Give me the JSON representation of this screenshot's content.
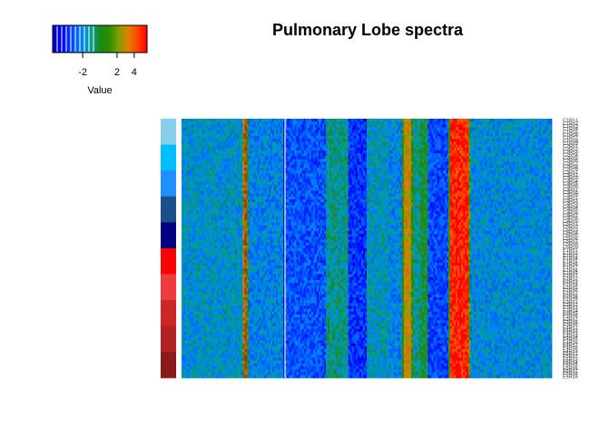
{
  "chart_data": {
    "type": "heatmap",
    "title": "Pulmonary Lobe spectra",
    "color_key": {
      "label": "Value",
      "ticks": [
        -2,
        2,
        4
      ],
      "range": [
        -5.5,
        5.5
      ],
      "colors": [
        "#0000b8",
        "#0000ff",
        "#0044ff",
        "#007fff",
        "#00a0a0",
        "#1a8a1a",
        "#2e8b00",
        "#7fa000",
        "#e08000",
        "#ff4500",
        "#ff0000"
      ]
    },
    "rows": [
      "C1Rs1",
      "C1Rs2",
      "C1Rs3",
      "C1Rs4",
      "C1Rs5",
      "C1Rs6",
      "C1Rs7",
      "C1Rs8",
      "C1Rs9",
      "C2Rs1",
      "C2Rs2",
      "C2Rs3",
      "C2Rs4",
      "C2Rs5",
      "C2Rs6",
      "C2Rs7",
      "C2Rs8",
      "C2Rs9",
      "C3Rs1",
      "C3Rs2",
      "C3Rs3",
      "C3Rs4",
      "C3Rs5",
      "C3Rs6",
      "C3Rs7",
      "C3Rs8",
      "C3Rs9",
      "C4Rs1",
      "C4Rs2",
      "C4Rs3",
      "C4Rs4",
      "C4Rs5",
      "C4Rs6",
      "C4Rs7",
      "C4Rs8",
      "C4Rs9",
      "C5Rs1",
      "C5Rs2",
      "C5Rs3",
      "C5Rs4",
      "C5Rs5",
      "C5Rs6",
      "C5Rs7",
      "C5Rs8",
      "C5Rs9",
      "E1Rs1",
      "E1Rs2",
      "E1Rs3",
      "E1Rs4",
      "E1Rs5",
      "E1Rs6",
      "E1Rs7",
      "E1Rs8",
      "E1Rs9",
      "E2Rs1",
      "E2Rs2",
      "E2Rs3",
      "E2Rs4",
      "E2Rs5",
      "E2Rs6",
      "E2Rs7",
      "E2Rs8",
      "E2Rs9",
      "E3Rs1",
      "E3Rs2",
      "E3Rs3",
      "E3Rs4",
      "E3Rs5",
      "E3Rs6",
      "E3Rs7",
      "E3Rs8",
      "E3Rs9",
      "E4Rs1",
      "E4Rs2",
      "E4Rs3",
      "E4Rs4",
      "E4Rs5",
      "E4Rs6",
      "E4Rs7",
      "E4Rs8",
      "E4Rs9",
      "E5Rs1",
      "E5Rs2",
      "E5Rs3",
      "E5Rs4",
      "E5Rs5",
      "E5Rs6",
      "E5Rs7",
      "E5Rs8",
      "E5Rs9"
    ],
    "row_groups": [
      {
        "color": "#87ceeb"
      },
      {
        "color": "#00bfff"
      },
      {
        "color": "#1e90ff"
      },
      {
        "color": "#1c4f8a"
      },
      {
        "color": "#000080"
      },
      {
        "color": "#ff0000"
      },
      {
        "color": "#ee3b3b"
      },
      {
        "color": "#cd2626"
      },
      {
        "color": "#b22222"
      },
      {
        "color": "#8b1a1a"
      }
    ],
    "n_columns": 200,
    "column_profile": [
      {
        "from": 0,
        "to": 33,
        "level": -1.6
      },
      {
        "from": 33,
        "to": 34,
        "level": 2.0
      },
      {
        "from": 34,
        "to": 35,
        "level": 5.0
      },
      {
        "from": 35,
        "to": 36,
        "level": 1.0
      },
      {
        "from": 36,
        "to": 55,
        "level": -2.0
      },
      {
        "from": 55,
        "to": 56,
        "level": -4.6
      },
      {
        "from": 56,
        "to": 78,
        "level": -3.0
      },
      {
        "from": 78,
        "to": 90,
        "level": -1.0
      },
      {
        "from": 90,
        "to": 100,
        "level": -3.6
      },
      {
        "from": 100,
        "to": 112,
        "level": -1.4
      },
      {
        "from": 112,
        "to": 119,
        "level": -2.0
      },
      {
        "from": 119,
        "to": 120,
        "level": 0.5
      },
      {
        "from": 120,
        "to": 124,
        "level": 3.0
      },
      {
        "from": 124,
        "to": 125,
        "level": 0.8
      },
      {
        "from": 125,
        "to": 129,
        "level": -1.0
      },
      {
        "from": 129,
        "to": 133,
        "level": 0.0
      },
      {
        "from": 133,
        "to": 144,
        "level": -3.2
      },
      {
        "from": 144,
        "to": 145,
        "level": 0.8
      },
      {
        "from": 145,
        "to": 155,
        "level": 5.0
      },
      {
        "from": 155,
        "to": 156,
        "level": 1.5
      },
      {
        "from": 156,
        "to": 200,
        "level": -1.8
      }
    ]
  }
}
